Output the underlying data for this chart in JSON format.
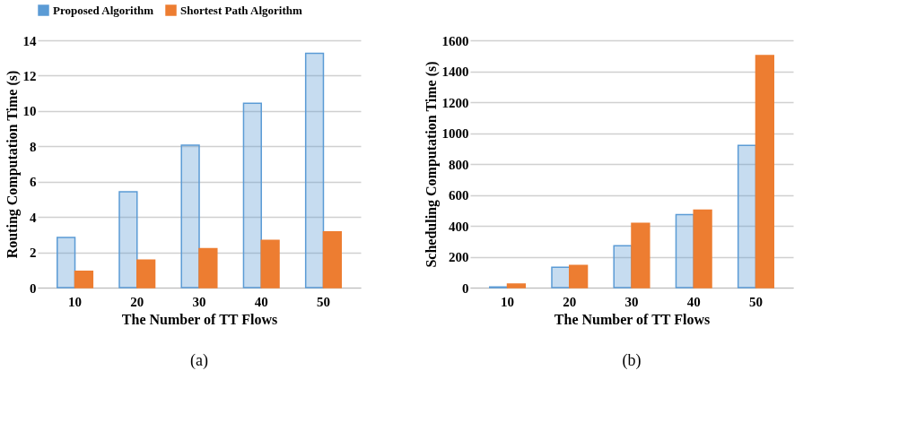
{
  "chart_data": [
    {
      "type": "bar",
      "xlabel": "The Number of TT Flows",
      "ylabel": "Routing Computation Time (s)",
      "categories": [
        "10",
        "20",
        "30",
        "40",
        "50"
      ],
      "series": [
        {
          "name": "Proposed Algorithm",
          "color": "#5b9bd5",
          "values": [
            2.84,
            5.43,
            8.07,
            10.44,
            13.26
          ]
        },
        {
          "name": "Shortest Path Algorithm",
          "color": "#ed7d31",
          "values": [
            0.93,
            1.56,
            2.21,
            2.67,
            3.16
          ]
        }
      ],
      "ylim": [
        0,
        14
      ],
      "yticks": [
        0,
        2,
        4,
        6,
        8,
        10,
        12,
        14
      ],
      "grid": "y",
      "legend": "top",
      "annotations": [
        "(a)"
      ]
    },
    {
      "type": "bar",
      "xlabel": "The Number of TT Flows",
      "ylabel": "Scheduling Computation Time (s)",
      "categories": [
        "10",
        "20",
        "30",
        "40",
        "50"
      ],
      "series": [
        {
          "name": "Proposed Algorithm",
          "color": "#5b9bd5",
          "values": [
            4,
            132,
            271,
            472,
            920
          ]
        },
        {
          "name": "Shortest Path Algorithm",
          "color": "#ed7d31",
          "values": [
            23,
            143,
            416,
            502,
            1501
          ]
        }
      ],
      "ylim": [
        0,
        1600
      ],
      "yticks": [
        0,
        200,
        400,
        600,
        800,
        1000,
        1200,
        1400,
        1600
      ],
      "grid": "y",
      "legend": "top",
      "annotations": [
        "(b)"
      ]
    }
  ]
}
